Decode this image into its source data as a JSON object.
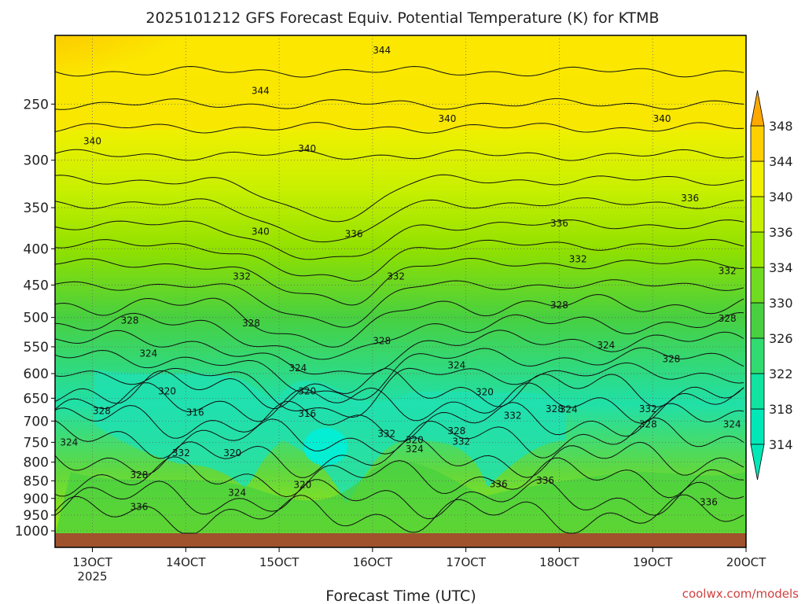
{
  "chart_data": {
    "type": "heatmap",
    "title": "2025101212 GFS Forecast Equiv. Potential Temperature (K) for KTMB",
    "xlabel": "Forecast Time (UTC)",
    "ylabel": "",
    "credit": "coolwx.com/models",
    "x_range_days": [
      12.6,
      20.0
    ],
    "y_range_hpa": [
      200,
      1020
    ],
    "x_ticks": [
      {
        "value": 13,
        "label": "13OCT",
        "sublabel": "2025"
      },
      {
        "value": 14,
        "label": "14OCT",
        "sublabel": ""
      },
      {
        "value": 15,
        "label": "15OCT",
        "sublabel": ""
      },
      {
        "value": 16,
        "label": "16OCT",
        "sublabel": ""
      },
      {
        "value": 17,
        "label": "17OCT",
        "sublabel": ""
      },
      {
        "value": 18,
        "label": "18OCT",
        "sublabel": ""
      },
      {
        "value": 19,
        "label": "19OCT",
        "sublabel": ""
      },
      {
        "value": 20,
        "label": "20OCT",
        "sublabel": ""
      }
    ],
    "y_ticks": [
      {
        "value": 250,
        "label": "250"
      },
      {
        "value": 300,
        "label": "300"
      },
      {
        "value": 350,
        "label": "350"
      },
      {
        "value": 400,
        "label": "400"
      },
      {
        "value": 450,
        "label": "450"
      },
      {
        "value": 500,
        "label": "500"
      },
      {
        "value": 550,
        "label": "550"
      },
      {
        "value": 600,
        "label": "600"
      },
      {
        "value": 650,
        "label": "650"
      },
      {
        "value": 700,
        "label": "700"
      },
      {
        "value": 750,
        "label": "750"
      },
      {
        "value": 800,
        "label": "800"
      },
      {
        "value": 850,
        "label": "850"
      },
      {
        "value": 900,
        "label": "900"
      },
      {
        "value": 950,
        "label": "950"
      },
      {
        "value": 1000,
        "label": "1000"
      }
    ],
    "colorbar": {
      "levels": [
        314,
        318,
        322,
        326,
        330,
        334,
        336,
        340,
        344,
        348
      ],
      "labels": [
        "314",
        "318",
        "322",
        "326",
        "330",
        "334",
        "336",
        "340",
        "344",
        "348"
      ],
      "colors": [
        "#00e8b8",
        "#10e4a0",
        "#30dc70",
        "#48d040",
        "#70dc20",
        "#a0e800",
        "#c8f000",
        "#f0f000",
        "#ffd000",
        "#ffa800"
      ]
    },
    "contour_labels": [
      {
        "text": "344",
        "t": 16.1,
        "p": 212
      },
      {
        "text": "344",
        "t": 14.8,
        "p": 242
      },
      {
        "text": "340",
        "t": 13.0,
        "p": 285
      },
      {
        "text": "340",
        "t": 15.3,
        "p": 292
      },
      {
        "text": "340",
        "t": 16.8,
        "p": 265
      },
      {
        "text": "340",
        "t": 19.1,
        "p": 265
      },
      {
        "text": "340",
        "t": 14.8,
        "p": 382
      },
      {
        "text": "336",
        "t": 15.8,
        "p": 385
      },
      {
        "text": "336",
        "t": 18.0,
        "p": 372
      },
      {
        "text": "336",
        "t": 19.4,
        "p": 343
      },
      {
        "text": "332",
        "t": 14.6,
        "p": 442
      },
      {
        "text": "332",
        "t": 16.25,
        "p": 442
      },
      {
        "text": "332",
        "t": 18.2,
        "p": 418
      },
      {
        "text": "332",
        "t": 19.8,
        "p": 434
      },
      {
        "text": "328",
        "t": 13.4,
        "p": 510
      },
      {
        "text": "328",
        "t": 14.7,
        "p": 515
      },
      {
        "text": "328",
        "t": 16.1,
        "p": 545
      },
      {
        "text": "328",
        "t": 18.0,
        "p": 485
      },
      {
        "text": "328",
        "t": 19.8,
        "p": 507
      },
      {
        "text": "328",
        "t": 19.2,
        "p": 578
      },
      {
        "text": "324",
        "t": 13.6,
        "p": 568
      },
      {
        "text": "324",
        "t": 15.2,
        "p": 595
      },
      {
        "text": "324",
        "t": 16.9,
        "p": 590
      },
      {
        "text": "324",
        "t": 18.5,
        "p": 553
      },
      {
        "text": "320",
        "t": 13.8,
        "p": 642
      },
      {
        "text": "320",
        "t": 15.3,
        "p": 642
      },
      {
        "text": "320",
        "t": 17.2,
        "p": 644
      },
      {
        "text": "316",
        "t": 14.1,
        "p": 688
      },
      {
        "text": "316",
        "t": 15.3,
        "p": 690
      },
      {
        "text": "328",
        "t": 13.1,
        "p": 684
      },
      {
        "text": "324",
        "t": 12.75,
        "p": 758
      },
      {
        "text": "328",
        "t": 13.5,
        "p": 843
      },
      {
        "text": "332",
        "t": 13.95,
        "p": 785
      },
      {
        "text": "320",
        "t": 14.5,
        "p": 785
      },
      {
        "text": "324",
        "t": 14.55,
        "p": 893
      },
      {
        "text": "320",
        "t": 15.25,
        "p": 870
      },
      {
        "text": "332",
        "t": 16.15,
        "p": 737
      },
      {
        "text": "320",
        "t": 16.45,
        "p": 752
      },
      {
        "text": "324",
        "t": 16.45,
        "p": 775
      },
      {
        "text": "328",
        "t": 16.9,
        "p": 730
      },
      {
        "text": "332",
        "t": 16.95,
        "p": 756
      },
      {
        "text": "328",
        "t": 17.95,
        "p": 680
      },
      {
        "text": "324",
        "t": 18.1,
        "p": 681
      },
      {
        "text": "332",
        "t": 17.5,
        "p": 695
      },
      {
        "text": "332",
        "t": 18.95,
        "p": 680
      },
      {
        "text": "328",
        "t": 18.95,
        "p": 715
      },
      {
        "text": "324",
        "t": 19.85,
        "p": 715
      },
      {
        "text": "336",
        "t": 17.35,
        "p": 868
      },
      {
        "text": "336",
        "t": 17.85,
        "p": 858
      },
      {
        "text": "336",
        "t": 13.5,
        "p": 935
      },
      {
        "text": "336",
        "t": 19.6,
        "p": 920
      }
    ]
  }
}
